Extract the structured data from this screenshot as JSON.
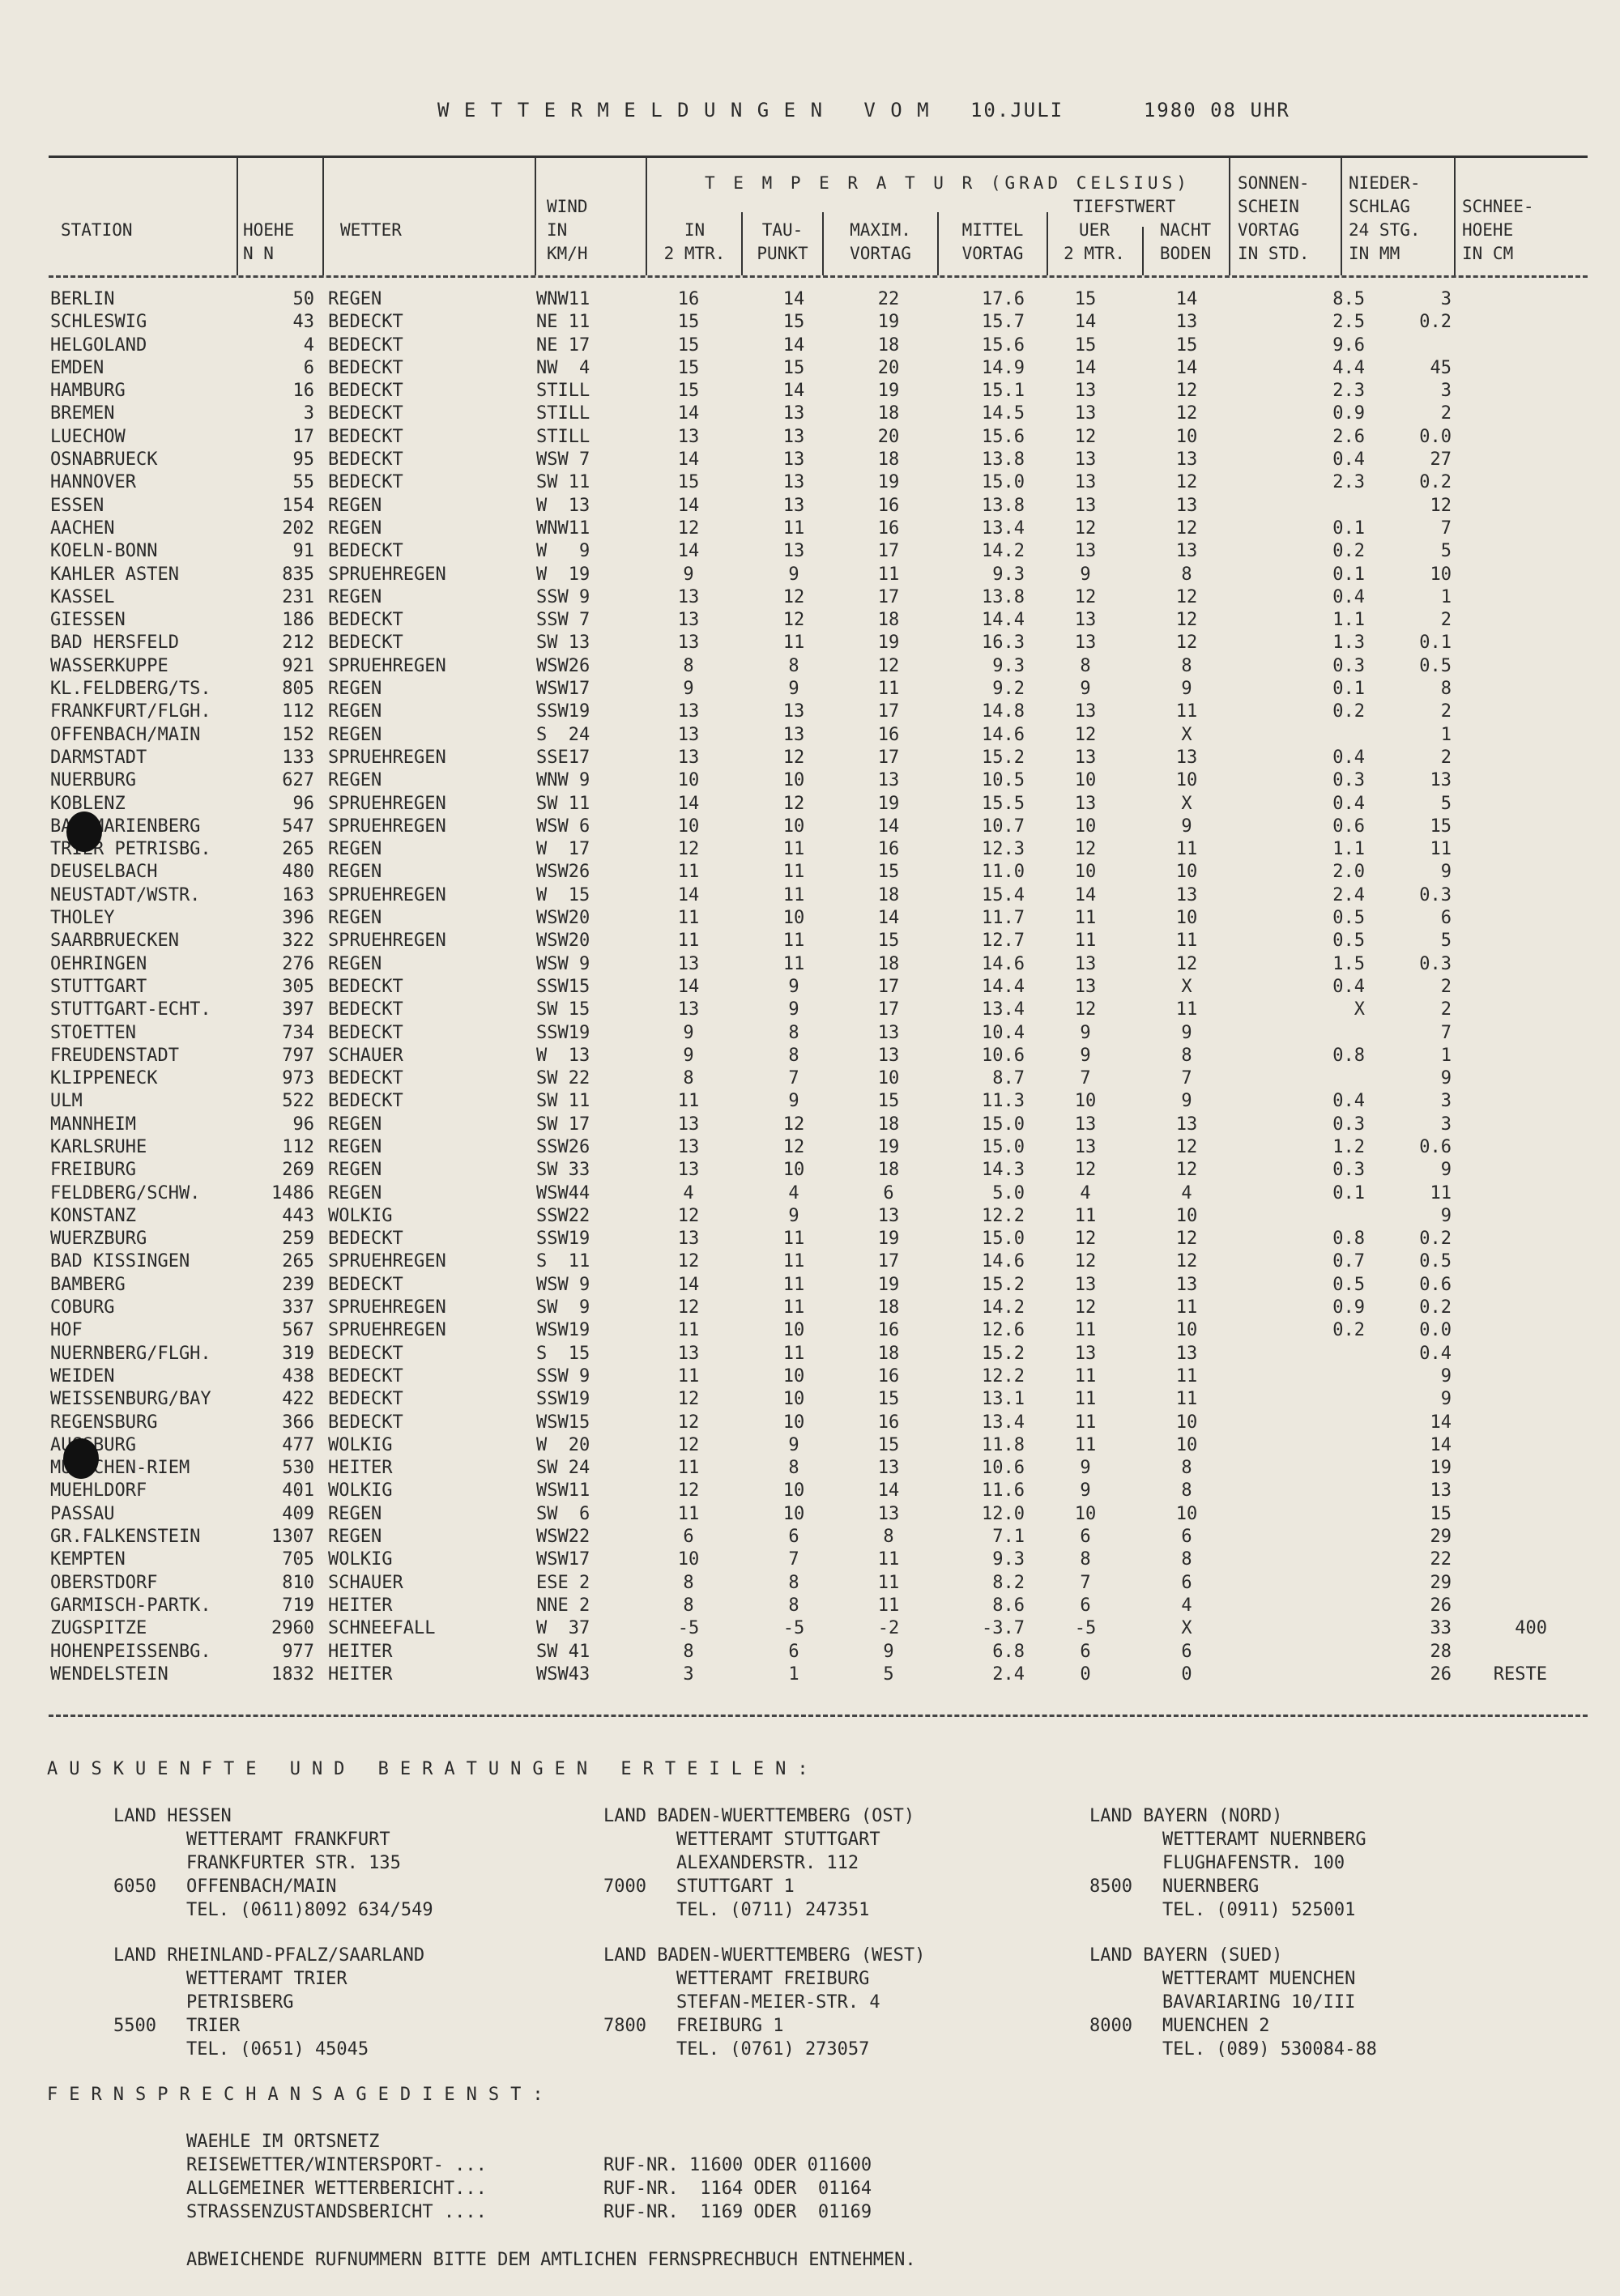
{
  "title": {
    "label": "W E T T E R M E L D U N G E N   V O M",
    "date": "10.JULI",
    "time": "1980 08 UHR"
  },
  "header": {
    "station": "STATION",
    "hoehe": "HOEHE\nN N",
    "wetter": "WETTER",
    "wind": "WIND\nIN\nKM/H",
    "temperatur": "T E M P E R A T U R (GRAD CELSIUS)",
    "in2m": "IN\n2 MTR.",
    "taupunkt": "TAU-\nPUNKT",
    "maxim": "MAXIM.\nVORTAG",
    "mittel": "MITTEL\nVORTAG",
    "tiefstwert": "TIEFSTWERT",
    "tief2m": "UER\n2 MTR.",
    "boden": "NACHT\nBODEN",
    "sonnenschein": "SONNEN-\nSCHEIN\nVORTAG\nIN STD.",
    "niederschlag": "NIEDER-\nSCHLAG\n24 STG.\nIN MM",
    "schneehoehe": "SCHNEE-\nHOEHE\nIN CM"
  },
  "rows": [
    [
      "BERLIN",
      "50",
      "REGEN",
      "WNW11",
      "16",
      "14",
      "22",
      "17.6",
      "15",
      "14",
      "8.5",
      "3",
      ""
    ],
    [
      "SCHLESWIG",
      "43",
      "BEDECKT",
      "NE 11",
      "15",
      "15",
      "19",
      "15.7",
      "14",
      "13",
      "2.5",
      "0.2",
      ""
    ],
    [
      "HELGOLAND",
      "4",
      "BEDECKT",
      "NE 17",
      "15",
      "14",
      "18",
      "15.6",
      "15",
      "15",
      "9.6",
      "",
      ""
    ],
    [
      "EMDEN",
      "6",
      "BEDECKT",
      "NW  4",
      "15",
      "15",
      "20",
      "14.9",
      "14",
      "14",
      "4.4",
      "45",
      ""
    ],
    [
      "HAMBURG",
      "16",
      "BEDECKT",
      "STILL",
      "15",
      "14",
      "19",
      "15.1",
      "13",
      "12",
      "2.3",
      "3",
      ""
    ],
    [
      "BREMEN",
      "3",
      "BEDECKT",
      "STILL",
      "14",
      "13",
      "18",
      "14.5",
      "13",
      "12",
      "0.9",
      "2",
      ""
    ],
    [
      "LUECHOW",
      "17",
      "BEDECKT",
      "STILL",
      "13",
      "13",
      "20",
      "15.6",
      "12",
      "10",
      "2.6",
      "0.0",
      ""
    ],
    [
      "OSNABRUECK",
      "95",
      "BEDECKT",
      "WSW 7",
      "14",
      "13",
      "18",
      "13.8",
      "13",
      "13",
      "0.4",
      "27",
      ""
    ],
    [
      "HANNOVER",
      "55",
      "BEDECKT",
      "SW 11",
      "15",
      "13",
      "19",
      "15.0",
      "13",
      "12",
      "2.3",
      "0.2",
      ""
    ],
    [
      "ESSEN",
      "154",
      "REGEN",
      "W  13",
      "14",
      "13",
      "16",
      "13.8",
      "13",
      "13",
      "",
      "12",
      ""
    ],
    [
      "AACHEN",
      "202",
      "REGEN",
      "WNW11",
      "12",
      "11",
      "16",
      "13.4",
      "12",
      "12",
      "0.1",
      "7",
      ""
    ],
    [
      "KOELN-BONN",
      "91",
      "BEDECKT",
      "W   9",
      "14",
      "13",
      "17",
      "14.2",
      "13",
      "13",
      "0.2",
      "5",
      ""
    ],
    [
      "KAHLER ASTEN",
      "835",
      "SPRUEHREGEN",
      "W  19",
      "9",
      "9",
      "11",
      "9.3",
      "9",
      "8",
      "0.1",
      "10",
      ""
    ],
    [
      "KASSEL",
      "231",
      "REGEN",
      "SSW 9",
      "13",
      "12",
      "17",
      "13.8",
      "12",
      "12",
      "0.4",
      "1",
      ""
    ],
    [
      "GIESSEN",
      "186",
      "BEDECKT",
      "SSW 7",
      "13",
      "12",
      "18",
      "14.4",
      "13",
      "12",
      "1.1",
      "2",
      ""
    ],
    [
      "BAD HERSFELD",
      "212",
      "BEDECKT",
      "SW 13",
      "13",
      "11",
      "19",
      "16.3",
      "13",
      "12",
      "1.3",
      "0.1",
      ""
    ],
    [
      "WASSERKUPPE",
      "921",
      "SPRUEHREGEN",
      "WSW26",
      "8",
      "8",
      "12",
      "9.3",
      "8",
      "8",
      "0.3",
      "0.5",
      ""
    ],
    [
      "KL.FELDBERG/TS.",
      "805",
      "REGEN",
      "WSW17",
      "9",
      "9",
      "11",
      "9.2",
      "9",
      "9",
      "0.1",
      "8",
      ""
    ],
    [
      "FRANKFURT/FLGH.",
      "112",
      "REGEN",
      "SSW19",
      "13",
      "13",
      "17",
      "14.8",
      "13",
      "11",
      "0.2",
      "2",
      ""
    ],
    [
      "OFFENBACH/MAIN",
      "152",
      "REGEN",
      "S  24",
      "13",
      "13",
      "16",
      "14.6",
      "12",
      "X",
      "",
      "1",
      ""
    ],
    [
      "DARMSTADT",
      "133",
      "SPRUEHREGEN",
      "SSE17",
      "13",
      "12",
      "17",
      "15.2",
      "13",
      "13",
      "0.4",
      "2",
      ""
    ],
    [
      "NUERBURG",
      "627",
      "REGEN",
      "WNW 9",
      "10",
      "10",
      "13",
      "10.5",
      "10",
      "10",
      "0.3",
      "13",
      ""
    ],
    [
      "KOBLENZ",
      "96",
      "SPRUEHREGEN",
      "SW 11",
      "14",
      "12",
      "19",
      "15.5",
      "13",
      "X",
      "0.4",
      "5",
      ""
    ],
    [
      "BAD MARIENBERG",
      "547",
      "SPRUEHREGEN",
      "WSW 6",
      "10",
      "10",
      "14",
      "10.7",
      "10",
      "9",
      "0.6",
      "15",
      ""
    ],
    [
      "TRIER PETRISBG.",
      "265",
      "REGEN",
      "W  17",
      "12",
      "11",
      "16",
      "12.3",
      "12",
      "11",
      "1.1",
      "11",
      ""
    ],
    [
      "DEUSELBACH",
      "480",
      "REGEN",
      "WSW26",
      "11",
      "11",
      "15",
      "11.0",
      "10",
      "10",
      "2.0",
      "9",
      ""
    ],
    [
      "NEUSTADT/WSTR.",
      "163",
      "SPRUEHREGEN",
      "W  15",
      "14",
      "11",
      "18",
      "15.4",
      "14",
      "13",
      "2.4",
      "0.3",
      ""
    ],
    [
      "THOLEY",
      "396",
      "REGEN",
      "WSW20",
      "11",
      "10",
      "14",
      "11.7",
      "11",
      "10",
      "0.5",
      "6",
      ""
    ],
    [
      "SAARBRUECKEN",
      "322",
      "SPRUEHREGEN",
      "WSW20",
      "11",
      "11",
      "15",
      "12.7",
      "11",
      "11",
      "0.5",
      "5",
      ""
    ],
    [
      "OEHRINGEN",
      "276",
      "REGEN",
      "WSW 9",
      "13",
      "11",
      "18",
      "14.6",
      "13",
      "12",
      "1.5",
      "0.3",
      ""
    ],
    [
      "STUTTGART",
      "305",
      "BEDECKT",
      "SSW15",
      "14",
      "9",
      "17",
      "14.4",
      "13",
      "X",
      "0.4",
      "2",
      ""
    ],
    [
      "STUTTGART-ECHT.",
      "397",
      "BEDECKT",
      "SW 15",
      "13",
      "9",
      "17",
      "13.4",
      "12",
      "11",
      "X",
      "2",
      ""
    ],
    [
      "STOETTEN",
      "734",
      "BEDECKT",
      "SSW19",
      "9",
      "8",
      "13",
      "10.4",
      "9",
      "9",
      "",
      "7",
      ""
    ],
    [
      "FREUDENSTADT",
      "797",
      "SCHAUER",
      "W  13",
      "9",
      "8",
      "13",
      "10.6",
      "9",
      "8",
      "0.8",
      "1",
      ""
    ],
    [
      "KLIPPENECK",
      "973",
      "BEDECKT",
      "SW 22",
      "8",
      "7",
      "10",
      "8.7",
      "7",
      "7",
      "",
      "9",
      ""
    ],
    [
      "ULM",
      "522",
      "BEDECKT",
      "SW 11",
      "11",
      "9",
      "15",
      "11.3",
      "10",
      "9",
      "0.4",
      "3",
      ""
    ],
    [
      "MANNHEIM",
      "96",
      "REGEN",
      "SW 17",
      "13",
      "12",
      "18",
      "15.0",
      "13",
      "13",
      "0.3",
      "3",
      ""
    ],
    [
      "KARLSRUHE",
      "112",
      "REGEN",
      "SSW26",
      "13",
      "12",
      "19",
      "15.0",
      "13",
      "12",
      "1.2",
      "0.6",
      ""
    ],
    [
      "FREIBURG",
      "269",
      "REGEN",
      "SW 33",
      "13",
      "10",
      "18",
      "14.3",
      "12",
      "12",
      "0.3",
      "9",
      ""
    ],
    [
      "FELDBERG/SCHW.",
      "1486",
      "REGEN",
      "WSW44",
      "4",
      "4",
      "6",
      "5.0",
      "4",
      "4",
      "0.1",
      "11",
      ""
    ],
    [
      "KONSTANZ",
      "443",
      "WOLKIG",
      "SSW22",
      "12",
      "9",
      "13",
      "12.2",
      "11",
      "10",
      "",
      "9",
      ""
    ],
    [
      "WUERZBURG",
      "259",
      "BEDECKT",
      "SSW19",
      "13",
      "11",
      "19",
      "15.0",
      "12",
      "12",
      "0.8",
      "0.2",
      ""
    ],
    [
      "BAD KISSINGEN",
      "265",
      "SPRUEHREGEN",
      "S  11",
      "12",
      "11",
      "17",
      "14.6",
      "12",
      "12",
      "0.7",
      "0.5",
      ""
    ],
    [
      "BAMBERG",
      "239",
      "BEDECKT",
      "WSW 9",
      "14",
      "11",
      "19",
      "15.2",
      "13",
      "13",
      "0.5",
      "0.6",
      ""
    ],
    [
      "COBURG",
      "337",
      "SPRUEHREGEN",
      "SW  9",
      "12",
      "11",
      "18",
      "14.2",
      "12",
      "11",
      "0.9",
      "0.2",
      ""
    ],
    [
      "HOF",
      "567",
      "SPRUEHREGEN",
      "WSW19",
      "11",
      "10",
      "16",
      "12.6",
      "11",
      "10",
      "0.2",
      "0.0",
      ""
    ],
    [
      "NUERNBERG/FLGH.",
      "319",
      "BEDECKT",
      "S  15",
      "13",
      "11",
      "18",
      "15.2",
      "13",
      "13",
      "",
      "0.4",
      ""
    ],
    [
      "WEIDEN",
      "438",
      "BEDECKT",
      "SSW 9",
      "11",
      "10",
      "16",
      "12.2",
      "11",
      "11",
      "",
      "9",
      ""
    ],
    [
      "WEISSENBURG/BAY",
      "422",
      "BEDECKT",
      "SSW19",
      "12",
      "10",
      "15",
      "13.1",
      "11",
      "11",
      "",
      "9",
      ""
    ],
    [
      "REGENSBURG",
      "366",
      "BEDECKT",
      "WSW15",
      "12",
      "10",
      "16",
      "13.4",
      "11",
      "10",
      "",
      "14",
      ""
    ],
    [
      "AUGSBURG",
      "477",
      "WOLKIG",
      "W  20",
      "12",
      "9",
      "15",
      "11.8",
      "11",
      "10",
      "",
      "14",
      ""
    ],
    [
      "MUENCHEN-RIEM",
      "530",
      "HEITER",
      "SW 24",
      "11",
      "8",
      "13",
      "10.6",
      "9",
      "8",
      "",
      "19",
      ""
    ],
    [
      "MUEHLDORF",
      "401",
      "WOLKIG",
      "WSW11",
      "12",
      "10",
      "14",
      "11.6",
      "9",
      "8",
      "",
      "13",
      ""
    ],
    [
      "PASSAU",
      "409",
      "REGEN",
      "SW  6",
      "11",
      "10",
      "13",
      "12.0",
      "10",
      "10",
      "",
      "15",
      ""
    ],
    [
      "GR.FALKENSTEIN",
      "1307",
      "REGEN",
      "WSW22",
      "6",
      "6",
      "8",
      "7.1",
      "6",
      "6",
      "",
      "29",
      ""
    ],
    [
      "KEMPTEN",
      "705",
      "WOLKIG",
      "WSW17",
      "10",
      "7",
      "11",
      "9.3",
      "8",
      "8",
      "",
      "22",
      ""
    ],
    [
      "OBERSTDORF",
      "810",
      "SCHAUER",
      "ESE 2",
      "8",
      "8",
      "11",
      "8.2",
      "7",
      "6",
      "",
      "29",
      ""
    ],
    [
      "GARMISCH-PARTK.",
      "719",
      "HEITER",
      "NNE 2",
      "8",
      "8",
      "11",
      "8.6",
      "6",
      "4",
      "",
      "26",
      ""
    ],
    [
      "ZUGSPITZE",
      "2960",
      "SCHNEEFALL",
      "W  37",
      "-5",
      "-5",
      "-2",
      "-3.7",
      "-5",
      "X",
      "",
      "33",
      "400"
    ],
    [
      "HOHENPEISSENBG.",
      "977",
      "HEITER",
      "SW 41",
      "8",
      "6",
      "9",
      "6.8",
      "6",
      "6",
      "",
      "28",
      ""
    ],
    [
      "WENDELSTEIN",
      "1832",
      "HEITER",
      "WSW43",
      "3",
      "1",
      "5",
      "2.4",
      "0",
      "0",
      "",
      "26",
      "RESTE"
    ]
  ],
  "footer": {
    "auskuenfte": "AUSKUENFTE UND BERATUNGEN ERTEILEN:",
    "contacts": [
      {
        "land": "LAND HESSEN",
        "amt": "WETTERAMT FRANKFURT",
        "street": "FRANKFURTER STR. 135",
        "plz": "6050",
        "city": "OFFENBACH/MAIN",
        "tel": "TEL. (0611)8092 634/549"
      },
      {
        "land": "LAND BADEN-WUERTTEMBERG (OST)",
        "amt": "WETTERAMT STUTTGART",
        "street": "ALEXANDERSTR. 112",
        "plz": "7000",
        "city": "STUTTGART 1",
        "tel": "TEL. (0711) 247351"
      },
      {
        "land": "LAND BAYERN (NORD)",
        "amt": "WETTERAMT NUERNBERG",
        "street": "FLUGHAFENSTR. 100",
        "plz": "8500",
        "city": "NUERNBERG",
        "tel": "TEL. (0911) 525001"
      },
      {
        "land": "LAND RHEINLAND-PFALZ/SAARLAND",
        "amt": "WETTERAMT TRIER",
        "street": "PETRISBERG",
        "plz": "5500",
        "city": "TRIER",
        "tel": "TEL. (0651) 45045"
      },
      {
        "land": "LAND BADEN-WUERTTEMBERG (WEST)",
        "amt": "WETTERAMT FREIBURG",
        "street": "STEFAN-MEIER-STR. 4",
        "plz": "7800",
        "city": "FREIBURG 1",
        "tel": "TEL. (0761) 273057"
      },
      {
        "land": "LAND BAYERN (SUED)",
        "amt": "WETTERAMT MUENCHEN",
        "street": "BAVARIARING 10/III",
        "plz": "8000",
        "city": "MUENCHEN 2",
        "tel": "TEL. (089) 530084-88"
      }
    ],
    "fernsprech": "FERNSPRECHANSAGEDIENST:",
    "ortsnetz": "WAEHLE IM ORTSNETZ",
    "services": [
      {
        "name": "REISEWETTER/WINTERSPORT- ...",
        "nr": "RUF-NR. 11600 ODER 011600"
      },
      {
        "name": "ALLGEMEINER WETTERBERICHT...",
        "nr": "RUF-NR.  1164 ODER  01164"
      },
      {
        "name": "STRASSENZUSTANDSBERICHT ....",
        "nr": "RUF-NR.  1169 ODER  01169"
      }
    ],
    "note": "ABWEICHENDE RUFNUMMERN BITTE DEM AMTLICHEN FERNSPRECHBUCH ENTNEHMEN."
  }
}
